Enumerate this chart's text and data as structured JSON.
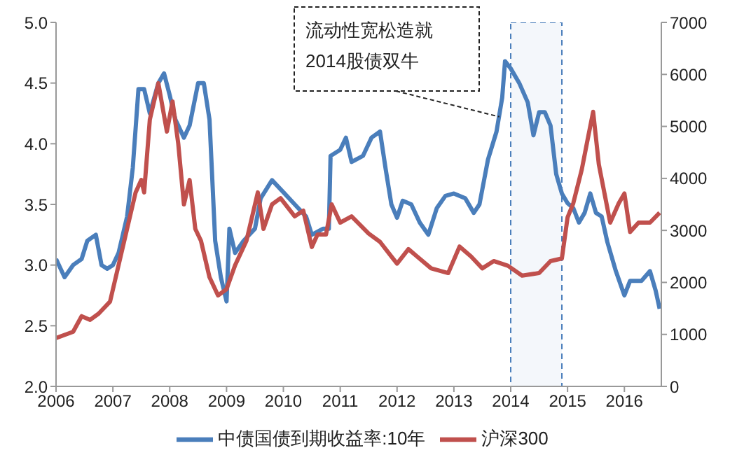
{
  "chart_data": {
    "type": "line",
    "xlim": [
      2006,
      2016.65
    ],
    "xticks": [
      2006,
      2007,
      2008,
      2009,
      2010,
      2011,
      2012,
      2013,
      2014,
      2015,
      2016
    ],
    "ylim": [
      2,
      5
    ],
    "yticks": [
      {
        "value": 2,
        "label": "2.0"
      },
      {
        "value": 2.5,
        "label": "2.5"
      },
      {
        "value": 3,
        "label": "3.0"
      },
      {
        "value": 3.5,
        "label": "3.5"
      },
      {
        "value": 4,
        "label": "4.0"
      },
      {
        "value": 4.5,
        "label": "4.5"
      },
      {
        "value": 5,
        "label": "5.0"
      }
    ],
    "y2lim": [
      0,
      7000
    ],
    "y2ticks": [
      0,
      1000,
      2000,
      3000,
      4000,
      5000,
      6000,
      7000
    ],
    "legend": "bottom",
    "marker": "none",
    "line_style": "solid",
    "series": [
      {
        "name": "中债国债到期收益率:10年",
        "color": "#4a7ebb",
        "x": [
          2006,
          2006.15,
          2006.3,
          2006.45,
          2006.55,
          2006.7,
          2006.8,
          2006.9,
          2007,
          2007.1,
          2007.25,
          2007.35,
          2007.45,
          2007.55,
          2007.65,
          2007.8,
          2007.9,
          2008,
          2008.1,
          2008.25,
          2008.35,
          2008.5,
          2008.6,
          2008.7,
          2008.75,
          2008.8,
          2008.9,
          2009,
          2009.05,
          2009.15,
          2009.3,
          2009.5,
          2009.6,
          2009.8,
          2010,
          2010.2,
          2010.4,
          2010.5,
          2010.7,
          2010.8,
          2010.83,
          2011,
          2011.1,
          2011.2,
          2011.4,
          2011.55,
          2011.7,
          2011.8,
          2011.9,
          2012,
          2012.1,
          2012.25,
          2012.4,
          2012.55,
          2012.7,
          2012.85,
          2013,
          2013.2,
          2013.35,
          2013.45,
          2013.6,
          2013.75,
          2013.85,
          2013.9,
          2014,
          2014.15,
          2014.3,
          2014.4,
          2014.5,
          2014.6,
          2014.7,
          2014.8,
          2014.9,
          2015,
          2015.1,
          2015.2,
          2015.3,
          2015.4,
          2015.5,
          2015.6,
          2015.7,
          2015.85,
          2016,
          2016.1,
          2016.3,
          2016.45,
          2016.55,
          2016.62
        ],
        "values": [
          3.05,
          2.9,
          3.0,
          3.05,
          3.2,
          3.25,
          3.0,
          2.97,
          3.0,
          3.1,
          3.4,
          3.8,
          4.45,
          4.45,
          4.25,
          4.5,
          4.58,
          4.4,
          4.2,
          4.05,
          4.15,
          4.5,
          4.5,
          4.2,
          3.7,
          3.2,
          2.9,
          2.7,
          3.3,
          3.1,
          3.2,
          3.3,
          3.55,
          3.7,
          3.6,
          3.5,
          3.4,
          3.25,
          3.3,
          3.3,
          3.9,
          3.95,
          4.05,
          3.85,
          3.9,
          4.05,
          4.1,
          3.79,
          3.5,
          3.39,
          3.53,
          3.5,
          3.35,
          3.25,
          3.47,
          3.57,
          3.59,
          3.55,
          3.43,
          3.5,
          3.87,
          4.1,
          4.38,
          4.68,
          4.62,
          4.5,
          4.34,
          4.07,
          4.26,
          4.26,
          4.15,
          3.75,
          3.59,
          3.51,
          3.47,
          3.35,
          3.43,
          3.59,
          3.43,
          3.4,
          3.19,
          2.95,
          2.75,
          2.87,
          2.87,
          2.95,
          2.79,
          2.64
        ]
      },
      {
        "name": "沪深300",
        "color": "#c0504d",
        "axis": "y2",
        "x": [
          2006,
          2006.3,
          2006.45,
          2006.6,
          2006.75,
          2006.95,
          2007.1,
          2007.25,
          2007.4,
          2007.5,
          2007.55,
          2007.65,
          2007.8,
          2007.95,
          2008.05,
          2008.15,
          2008.25,
          2008.35,
          2008.45,
          2008.55,
          2008.7,
          2008.85,
          2009,
          2009.15,
          2009.35,
          2009.55,
          2009.65,
          2009.8,
          2009.95,
          2010.2,
          2010.35,
          2010.5,
          2010.6,
          2010.75,
          2010.85,
          2011,
          2011.2,
          2011.5,
          2011.7,
          2011.9,
          2012,
          2012.2,
          2012.35,
          2012.6,
          2012.9,
          2013.1,
          2013.3,
          2013.5,
          2013.7,
          2013.95,
          2014.2,
          2014.5,
          2014.7,
          2014.9,
          2015,
          2015.1,
          2015.25,
          2015.35,
          2015.45,
          2015.55,
          2015.65,
          2015.75,
          2015.9,
          2016,
          2016.1,
          2016.25,
          2016.45,
          2016.62
        ],
        "values": [
          930,
          1050,
          1350,
          1280,
          1400,
          1630,
          2330,
          3030,
          3730,
          3970,
          3730,
          5130,
          5830,
          4900,
          5480,
          4670,
          3500,
          3970,
          3030,
          2800,
          2100,
          1750,
          1870,
          2330,
          2800,
          3730,
          3030,
          3500,
          3620,
          3270,
          3380,
          2680,
          2920,
          2920,
          3500,
          3150,
          3270,
          2940,
          2780,
          2500,
          2360,
          2640,
          2500,
          2270,
          2180,
          2690,
          2500,
          2270,
          2410,
          2320,
          2130,
          2180,
          2410,
          2460,
          3250,
          3520,
          4170,
          4730,
          5280,
          4270,
          3710,
          3150,
          3520,
          3710,
          2970,
          3150,
          3150,
          3340
        ]
      }
    ],
    "bands": [
      {
        "axis": "x",
        "from": 2014,
        "to": 2014.9,
        "color": "#4a7ebb"
      }
    ],
    "annotations": [
      {
        "text": "流动性宽松造就\n2014股债双牛",
        "x": 2013.8,
        "y": 4.21
      }
    ]
  }
}
